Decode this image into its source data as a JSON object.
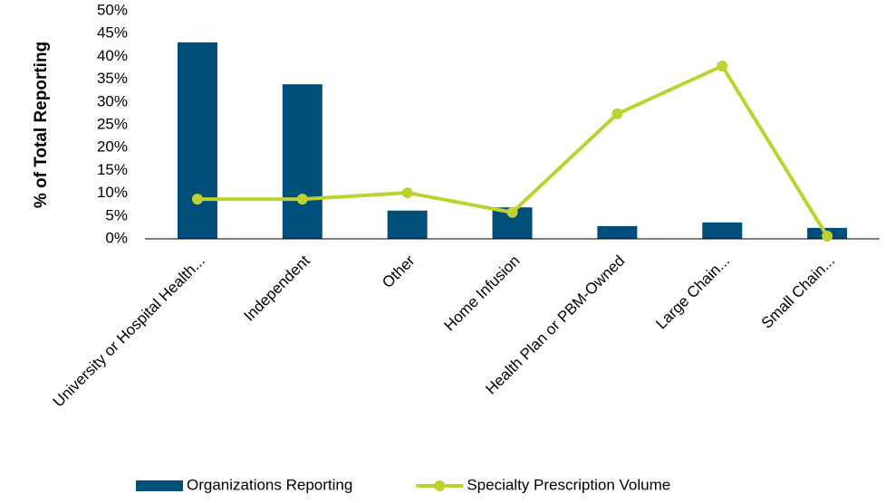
{
  "chart_data": {
    "type": "bar",
    "ylabel": "% of Total Reporting",
    "categories": [
      "University or Hospital Health...",
      "Independent",
      "Other",
      "Home Infusion",
      "Health Plan or PBM-Owned",
      "Large Chain...",
      "Small Chain..."
    ],
    "series": [
      {
        "name": "Organizations Reporting",
        "type": "bar",
        "color": "#004f7a",
        "values": [
          43.1,
          33.9,
          6.2,
          6.9,
          2.8,
          3.6,
          2.4
        ]
      },
      {
        "name": "Specialty Prescription Volume",
        "type": "line",
        "color": "#bfd130",
        "values": [
          8.7,
          8.7,
          10.1,
          5.8,
          27.4,
          37.9,
          0.6
        ]
      }
    ],
    "ylim": [
      0,
      50
    ],
    "yticks": [
      {
        "value": 0,
        "label": "0%"
      },
      {
        "value": 5,
        "label": "5%"
      },
      {
        "value": 10,
        "label": "10%"
      },
      {
        "value": 15,
        "label": "15%"
      },
      {
        "value": 20,
        "label": "20%"
      },
      {
        "value": 25,
        "label": "25%"
      },
      {
        "value": 30,
        "label": "30%"
      },
      {
        "value": 35,
        "label": "35%"
      },
      {
        "value": 40,
        "label": "40%"
      },
      {
        "value": 45,
        "label": "45%"
      },
      {
        "value": 50,
        "label": "50%"
      }
    ],
    "legend": "bottom"
  }
}
